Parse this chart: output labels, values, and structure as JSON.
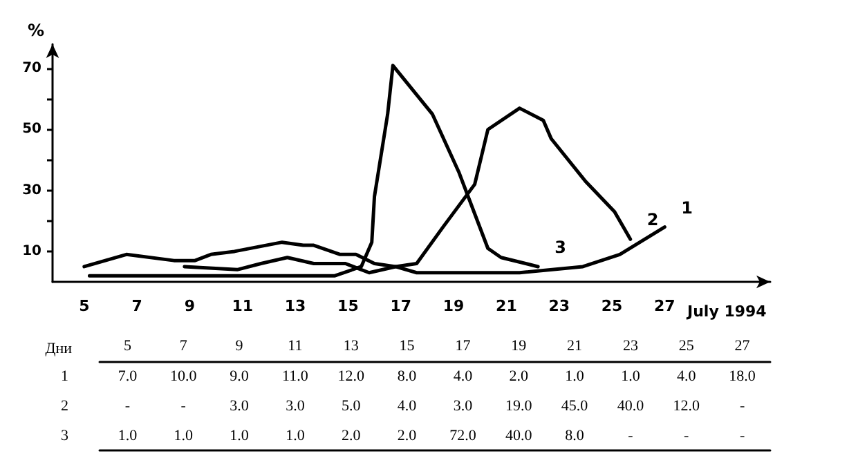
{
  "chart_data": [
    {
      "type": "line",
      "series": [
        {
          "name": "1",
          "color": "#000000",
          "x": [
            5,
            6.6,
            8.4,
            9.2,
            9.8,
            10.7,
            12.5,
            13.3,
            13.7,
            14.7,
            15.3,
            16,
            16.8,
            17.6,
            17.9,
            21.5,
            23.9,
            25.3,
            27
          ],
          "values": [
            5,
            9,
            7,
            7,
            9,
            10,
            13,
            12,
            12,
            9,
            9,
            6,
            5,
            3,
            3,
            3,
            5,
            9,
            18
          ]
        },
        {
          "name": "2",
          "color": "#000000",
          "x": [
            8.8,
            10.8,
            11.7,
            12.7,
            13.7,
            14.1,
            14.9,
            15.8,
            16.8,
            17.6,
            18.6,
            19.8,
            20.3,
            21.5,
            22.4,
            22.7,
            24,
            25.1,
            25.7
          ],
          "values": [
            5,
            4,
            6,
            8,
            6,
            6,
            6,
            3,
            5,
            6,
            18,
            32,
            50,
            57,
            53,
            47,
            33,
            23,
            14
          ]
        },
        {
          "name": "3",
          "color": "#000000",
          "x": [
            5.2,
            14.5,
            15.5,
            15.9,
            16,
            16.5,
            16.7,
            18.2,
            19.2,
            20.3,
            20.8,
            22.2
          ],
          "values": [
            2,
            2,
            5,
            13,
            28,
            55,
            71,
            55,
            36,
            11,
            8,
            5
          ]
        }
      ],
      "xlabel": "July 1994",
      "ylabel": "%",
      "xlim": [
        3.8,
        31
      ],
      "xticks": [
        5,
        7,
        9,
        11,
        13,
        15,
        17,
        19,
        21,
        23,
        25,
        27
      ],
      "ylim": [
        0,
        78
      ],
      "yticks": [
        10,
        {
          "value": 20,
          "label": null
        },
        30,
        {
          "value": 40,
          "label": null
        },
        50,
        {
          "value": 60,
          "label": null
        },
        70
      ],
      "grid": false,
      "legend": false,
      "marker": "none",
      "line_style": "solid"
    },
    {
      "type": "heatmap",
      "xlabel": "Дни",
      "categories": [
        "5",
        "7",
        "9",
        "11",
        "13",
        "15",
        "17",
        "19",
        "21",
        "23",
        "25",
        "27"
      ],
      "y_categories": [
        "1",
        "2",
        "3"
      ],
      "cells": [
        [
          7.0,
          10.0,
          9.0,
          11.0,
          12.0,
          8.0,
          4.0,
          2.0,
          1.0,
          1.0,
          4.0,
          18.0
        ],
        [
          null,
          null,
          3.0,
          3.0,
          5.0,
          4.0,
          3.0,
          19.0,
          45.0,
          40.0,
          12.0,
          null
        ],
        [
          1.0,
          1.0,
          1.0,
          1.0,
          2.0,
          2.0,
          72.0,
          40.0,
          8.0,
          null,
          null,
          null
        ]
      ],
      "cell_labels": [
        [
          "7.0",
          "10.0",
          "9.0",
          "11.0",
          "12.0",
          "8.0",
          "4.0",
          "2.0",
          "1.0",
          "1.0",
          "4.0",
          "18.0"
        ],
        [
          "-",
          "-",
          "3.0",
          "3.0",
          "5.0",
          "4.0",
          "3.0",
          "19.0",
          "45.0",
          "40.0",
          "12.0",
          "-"
        ],
        [
          "1.0",
          "1.0",
          "1.0",
          "1.0",
          "2.0",
          "2.0",
          "72.0",
          "40.0",
          "8.0",
          "-",
          "-",
          "-"
        ]
      ]
    }
  ]
}
